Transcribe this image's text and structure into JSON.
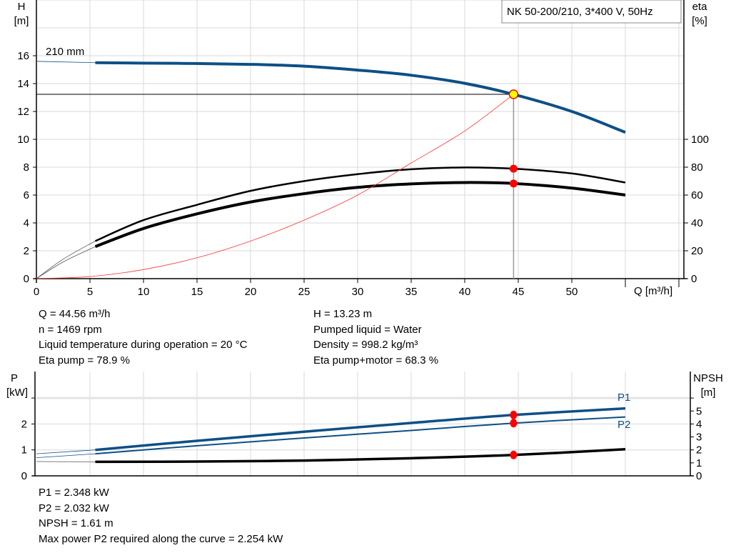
{
  "title_box": "NK 50-200/210, 3*400 V, 50Hz",
  "colors": {
    "head": "#0e4f86",
    "eta": "#000000",
    "system": "#ff3333",
    "marker": "#ff0000",
    "duty_point_fill": "#ffff00",
    "grid": "#d9d9d9"
  },
  "chart_data": [
    {
      "type": "line",
      "y_axis_label": [
        "H",
        "[m]"
      ],
      "y2_axis_label": [
        "eta",
        "[%]"
      ],
      "x_axis_label": "Q [m³/h]",
      "xlim": [
        0,
        60
      ],
      "ylim": [
        0,
        20
      ],
      "y2lim": [
        0,
        200
      ],
      "x_ticks": [
        0,
        5,
        10,
        15,
        20,
        25,
        30,
        35,
        40,
        45,
        50
      ],
      "y_ticks": [
        0,
        2,
        4,
        6,
        8,
        10,
        12,
        14,
        16
      ],
      "y2_ticks": [
        0,
        20,
        40,
        60,
        80,
        100
      ],
      "grid": true,
      "curve_label": "210 mm",
      "duty_point": {
        "Q": 44.56,
        "H": 13.23,
        "eta_pump": 78.9,
        "eta_total": 68.3
      },
      "series": [
        {
          "key": "head",
          "axis": "y",
          "extension": [
            [
              0,
              15.6
            ],
            [
              5.5,
              15.5
            ]
          ],
          "points": [
            [
              5.5,
              15.5
            ],
            [
              10,
              15.47
            ],
            [
              15,
              15.44
            ],
            [
              20,
              15.38
            ],
            [
              25,
              15.25
            ],
            [
              30,
              14.97
            ],
            [
              35,
              14.6
            ],
            [
              40,
              14.02
            ],
            [
              44.56,
              13.23
            ],
            [
              50,
              12.0
            ],
            [
              55,
              10.5
            ]
          ]
        },
        {
          "key": "eta_pump",
          "axis": "y2",
          "extension": [
            [
              0,
              0
            ],
            [
              2.5,
              14
            ],
            [
              5.5,
              27
            ]
          ],
          "points": [
            [
              5.5,
              27
            ],
            [
              10,
              42
            ],
            [
              15,
              53
            ],
            [
              20,
              63
            ],
            [
              25,
              70
            ],
            [
              30,
              75
            ],
            [
              35,
              78.5
            ],
            [
              40,
              79.8
            ],
            [
              44.56,
              78.9
            ],
            [
              50,
              75.5
            ],
            [
              55,
              69
            ]
          ]
        },
        {
          "key": "eta_total",
          "axis": "y2",
          "extension": [
            [
              0,
              0
            ],
            [
              2.5,
              12
            ],
            [
              5.5,
              23
            ]
          ],
          "points": [
            [
              5.5,
              23
            ],
            [
              10,
              36
            ],
            [
              15,
              46.5
            ],
            [
              20,
              55
            ],
            [
              25,
              61
            ],
            [
              30,
              65.5
            ],
            [
              35,
              68
            ],
            [
              40,
              69
            ],
            [
              44.56,
              68.3
            ],
            [
              50,
              65
            ],
            [
              55,
              60
            ]
          ]
        },
        {
          "key": "system",
          "axis": "y",
          "points": [
            [
              0,
              0
            ],
            [
              5,
              0.15
            ],
            [
              10,
              0.65
            ],
            [
              15,
              1.5
            ],
            [
              20,
              2.7
            ],
            [
              25,
              4.2
            ],
            [
              30,
              6.0
            ],
            [
              35,
              8.3
            ],
            [
              40,
              10.6
            ],
            [
              44.56,
              13.23
            ]
          ]
        }
      ]
    },
    {
      "type": "line",
      "y_axis_label": [
        "P",
        "[kW]"
      ],
      "y2_axis_label": [
        "NPSH",
        "[m]"
      ],
      "xlim": [
        0,
        60
      ],
      "ylim": [
        0,
        4
      ],
      "y2lim": [
        0,
        8
      ],
      "y_ticks": [
        0,
        1,
        2
      ],
      "y2_ticks": [
        0,
        1,
        2,
        3,
        4,
        5
      ],
      "grid": true,
      "series": [
        {
          "key": "P1",
          "name": "P1",
          "axis": "y",
          "extension": [
            [
              0,
              0.85
            ],
            [
              5.5,
              1.0
            ]
          ],
          "points": [
            [
              5.5,
              1.0
            ],
            [
              15,
              1.35
            ],
            [
              25,
              1.7
            ],
            [
              35,
              2.04
            ],
            [
              44.56,
              2.348
            ],
            [
              55,
              2.6
            ]
          ],
          "marker": 2.348
        },
        {
          "key": "P2",
          "name": "P2",
          "axis": "y",
          "extension": [
            [
              0,
              0.7
            ],
            [
              5.5,
              0.85
            ]
          ],
          "points": [
            [
              5.5,
              0.85
            ],
            [
              15,
              1.16
            ],
            [
              25,
              1.46
            ],
            [
              35,
              1.75
            ],
            [
              44.56,
              2.032
            ],
            [
              55,
              2.27
            ]
          ],
          "marker": 2.032
        },
        {
          "key": "NPSH",
          "axis": "y2",
          "extension": [
            [
              0,
              1.1
            ],
            [
              5.5,
              1.08
            ]
          ],
          "points": [
            [
              5.5,
              1.08
            ],
            [
              15,
              1.1
            ],
            [
              25,
              1.18
            ],
            [
              35,
              1.36
            ],
            [
              44.56,
              1.61
            ],
            [
              55,
              2.05
            ]
          ],
          "marker": 1.61
        }
      ]
    }
  ],
  "info_top": {
    "left": [
      "Q = 44.56 m³/h",
      "n = 1469 rpm",
      "Liquid temperature during operation = 20 °C",
      "Eta pump = 78.9 %"
    ],
    "right": [
      "H = 13.23 m",
      "Pumped liquid = Water",
      "Density = 998.2 kg/m³",
      "Eta pump+motor = 68.3 %"
    ]
  },
  "info_bottom": [
    "P1 = 2.348 kW",
    "P2 = 2.032 kW",
    "NPSH = 1.61 m",
    "Max power P2 required along the curve = 2.254 kW"
  ]
}
